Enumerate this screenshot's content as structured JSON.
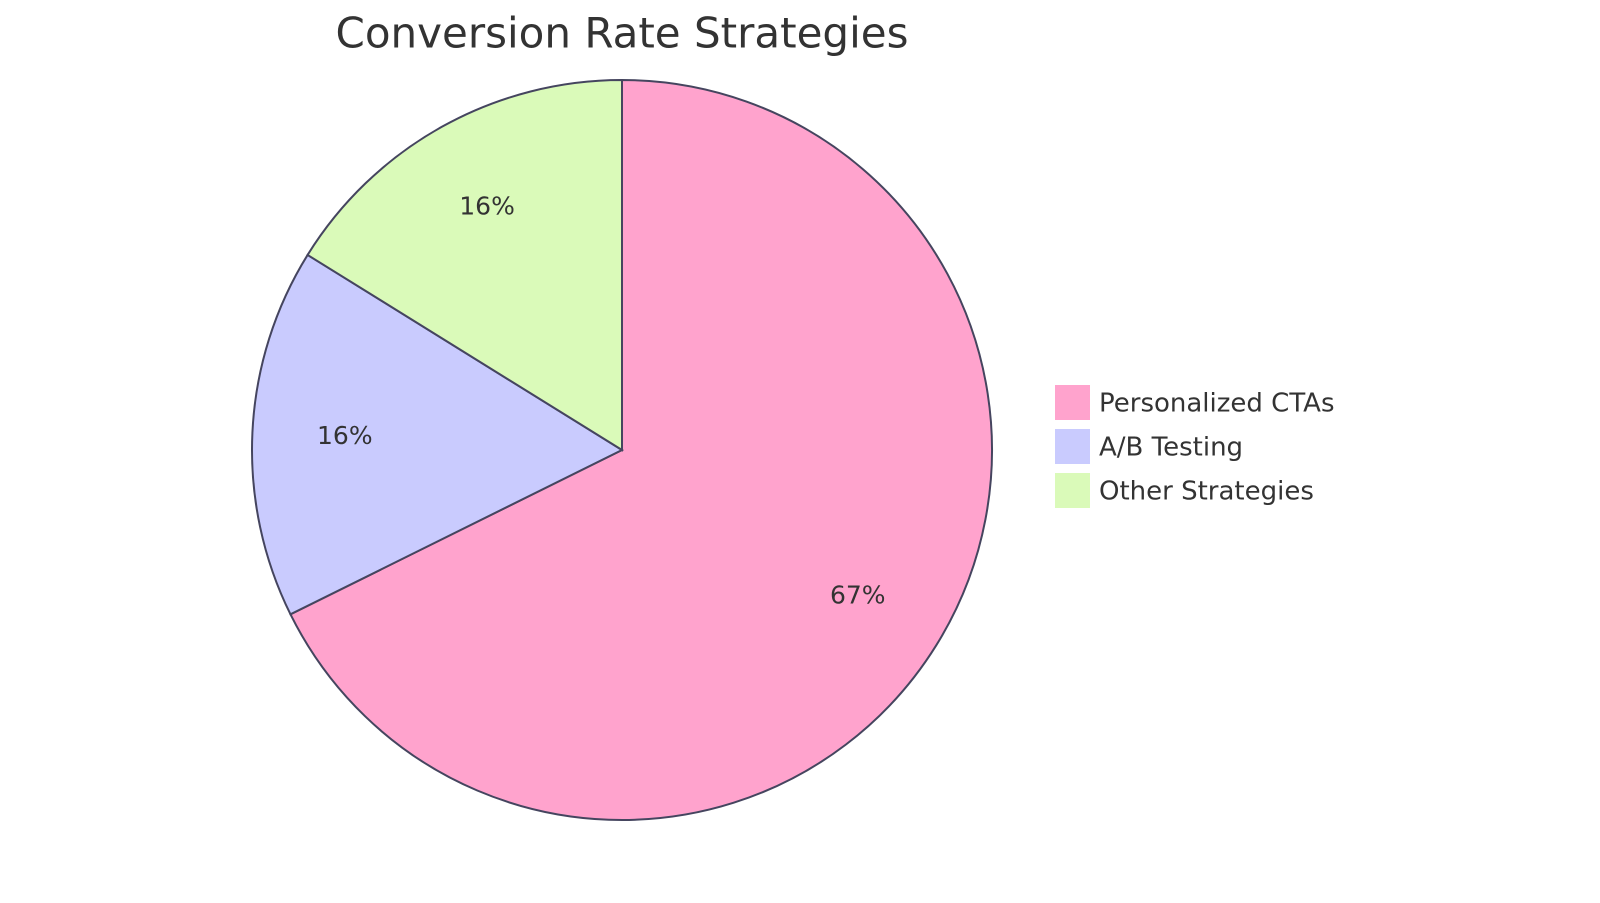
{
  "chart_data": {
    "type": "pie",
    "title": "Conversion Rate Strategies",
    "categories": [
      "Personalized CTAs",
      "A/B Testing",
      "Other Strategies"
    ],
    "values": [
      67,
      16,
      16
    ],
    "value_labels": [
      "67%",
      "16%",
      "16%"
    ],
    "colors": [
      "#ffa3cd",
      "#c9cbfe",
      "#dafab9"
    ],
    "legend": "right"
  }
}
